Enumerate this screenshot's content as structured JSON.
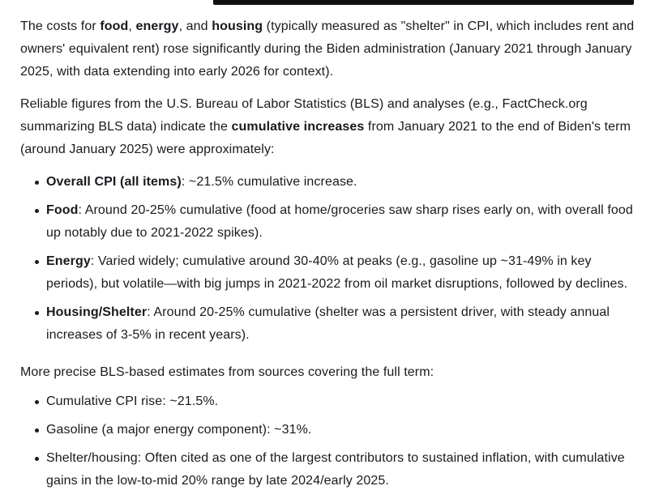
{
  "page": {
    "background_color": "#ffffff",
    "text_color": "#181a1e",
    "top_bar_color": "#101010"
  },
  "content": {
    "p1": {
      "pre": "The costs for ",
      "bold1": "food",
      "sep1": ", ",
      "bold2": "energy",
      "sep2": ", and ",
      "bold3": "housing",
      "post": " (typically measured as \"shelter\" in CPI, which includes rent and owners' equivalent rent) rose significantly during the Biden administration (January 2021 through January 2025, with data extending into early 2026 for context)."
    },
    "p2": {
      "pre": "Reliable figures from the U.S. Bureau of Labor Statistics (BLS) and analyses (e.g., FactCheck.org summarizing BLS data) indicate the ",
      "bold": "cumulative increases",
      "post": " from January 2021 to the end of Biden's term (around January 2025) were approximately:"
    },
    "list1": [
      {
        "bold": "Overall CPI (all items)",
        "text": ": ~21.5% cumulative increase."
      },
      {
        "bold": "Food",
        "text": ": Around 20-25% cumulative (food at home/groceries saw sharp rises early on, with overall food up notably due to 2021-2022 spikes)."
      },
      {
        "bold": "Energy",
        "text": ": Varied widely; cumulative around 30-40% at peaks (e.g., gasoline up ~31-49% in key periods), but volatile—with big jumps in 2021-2022 from oil market disruptions, followed by declines."
      },
      {
        "bold": "Housing/Shelter",
        "text": ": Around 20-25% cumulative (shelter was a persistent driver, with steady annual increases of 3-5% in recent years)."
      }
    ],
    "p3": "More precise BLS-based estimates from sources covering the full term:",
    "list2": [
      "Cumulative CPI rise: ~21.5%.",
      "Gasoline (a major energy component): ~31%.",
      "Shelter/housing: Often cited as one of the largest contributors to sustained inflation, with cumulative gains in the low-to-mid 20% range by late 2024/early 2025."
    ]
  }
}
